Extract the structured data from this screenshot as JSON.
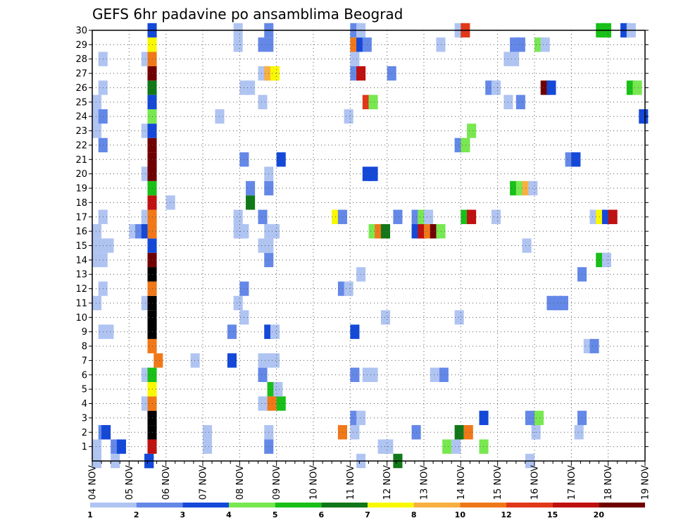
{
  "chart_data": {
    "type": "heatmap",
    "title": "GEFS 6hr padavine po ansamblima Beograd",
    "xlabel": "",
    "ylabel": "",
    "x_tick_labels": [
      "04 NOV",
      "05 NOV",
      "06 NOV",
      "07 NOV",
      "08 NOV",
      "09 NOV",
      "10 NOV",
      "11 NOV",
      "12 NOV",
      "13 NOV",
      "14 NOV",
      "15 NOV",
      "16 NOV",
      "17 NOV",
      "18 NOV",
      "19 NOV"
    ],
    "y_tick_labels": [
      "1",
      "2",
      "3",
      "4",
      "5",
      "6",
      "7",
      "8",
      "9",
      "10",
      "11",
      "12",
      "13",
      "14",
      "15",
      "16",
      "17",
      "18",
      "19",
      "20",
      "21",
      "22",
      "23",
      "24",
      "25",
      "26",
      "27",
      "28",
      "29",
      "30"
    ],
    "xlim_hours_from_04nov": [
      0,
      360
    ],
    "ylim_member": [
      0,
      30
    ],
    "grid": true,
    "legend": {
      "placement": "bottom",
      "labels": [
        "1",
        "2",
        "3",
        "4",
        "5",
        "6",
        "7",
        "8",
        "10",
        "12",
        "15",
        "20"
      ],
      "colors": [
        "#b0c4f2",
        "#6488e8",
        "#1448d8",
        "#78e850",
        "#18c018",
        "#107818",
        "#f8f800",
        "#f8b040",
        "#f07818",
        "#e03818",
        "#c01010",
        "#700000"
      ]
    },
    "cells": [
      [
        0,
        0,
        1
      ],
      [
        6,
        0,
        1
      ],
      [
        17,
        0,
        3
      ],
      [
        17,
        0,
        3
      ],
      [
        86,
        0,
        1
      ],
      [
        98,
        0,
        6
      ],
      [
        141,
        0,
        1
      ],
      [
        0,
        1,
        1
      ],
      [
        6,
        1,
        2
      ],
      [
        8,
        1,
        3
      ],
      [
        18,
        1,
        11
      ],
      [
        36,
        1,
        1
      ],
      [
        56,
        1,
        2
      ],
      [
        114,
        1,
        4
      ],
      [
        93,
        1,
        1
      ],
      [
        95,
        1,
        1
      ],
      [
        117,
        1,
        1
      ],
      [
        126,
        1,
        4
      ],
      [
        2,
        2,
        2
      ],
      [
        3,
        2,
        3
      ],
      [
        18,
        2,
        13
      ],
      [
        36,
        2,
        1
      ],
      [
        56,
        2,
        1
      ],
      [
        80,
        2,
        9
      ],
      [
        84,
        2,
        1
      ],
      [
        104,
        2,
        2
      ],
      [
        118,
        2,
        6
      ],
      [
        121,
        2,
        9
      ],
      [
        143,
        2,
        1
      ],
      [
        157,
        2,
        1
      ],
      [
        18,
        3,
        13
      ],
      [
        84,
        3,
        2
      ],
      [
        86,
        3,
        1
      ],
      [
        126,
        3,
        3
      ],
      [
        141,
        3,
        2
      ],
      [
        144,
        3,
        4
      ],
      [
        158,
        3,
        2
      ],
      [
        16,
        4,
        1
      ],
      [
        18,
        4,
        9
      ],
      [
        54,
        4,
        1
      ],
      [
        57,
        4,
        9
      ],
      [
        60,
        4,
        5
      ],
      [
        18,
        5,
        7
      ],
      [
        57,
        5,
        5
      ],
      [
        59,
        5,
        1
      ],
      [
        16,
        6,
        1
      ],
      [
        18,
        6,
        5
      ],
      [
        54,
        6,
        2
      ],
      [
        84,
        6,
        2
      ],
      [
        88,
        6,
        1
      ],
      [
        90,
        6,
        1
      ],
      [
        110,
        6,
        1
      ],
      [
        113,
        6,
        2
      ],
      [
        20,
        7,
        9
      ],
      [
        32,
        7,
        1
      ],
      [
        44,
        7,
        3
      ],
      [
        54,
        7,
        1
      ],
      [
        56,
        7,
        1
      ],
      [
        58,
        7,
        1
      ],
      [
        18,
        8,
        9
      ],
      [
        160,
        8,
        1
      ],
      [
        162,
        8,
        2
      ],
      [
        2,
        9,
        1
      ],
      [
        4,
        9,
        1
      ],
      [
        18,
        9,
        13
      ],
      [
        44,
        9,
        2
      ],
      [
        56,
        9,
        3
      ],
      [
        58,
        9,
        1
      ],
      [
        84,
        9,
        3
      ],
      [
        18,
        10,
        13
      ],
      [
        48,
        10,
        1
      ],
      [
        94,
        10,
        1
      ],
      [
        118,
        10,
        1
      ],
      [
        0,
        11,
        1
      ],
      [
        16,
        11,
        1
      ],
      [
        18,
        11,
        13
      ],
      [
        46,
        11,
        1
      ],
      [
        148,
        11,
        2
      ],
      [
        150,
        11,
        2
      ],
      [
        152,
        11,
        2
      ],
      [
        2,
        12,
        1
      ],
      [
        18,
        12,
        9
      ],
      [
        48,
        12,
        2
      ],
      [
        80,
        12,
        2
      ],
      [
        82,
        12,
        1
      ],
      [
        18,
        13,
        13
      ],
      [
        86,
        13,
        1
      ],
      [
        158,
        13,
        2
      ],
      [
        0,
        14,
        1
      ],
      [
        2,
        14,
        1
      ],
      [
        18,
        14,
        12
      ],
      [
        56,
        14,
        2
      ],
      [
        164,
        14,
        5
      ],
      [
        166,
        14,
        1
      ],
      [
        0,
        15,
        1
      ],
      [
        2,
        15,
        1
      ],
      [
        4,
        15,
        1
      ],
      [
        18,
        15,
        3
      ],
      [
        54,
        15,
        1
      ],
      [
        56,
        15,
        1
      ],
      [
        140,
        15,
        1
      ],
      [
        0,
        16,
        1
      ],
      [
        12,
        16,
        1
      ],
      [
        14,
        16,
        2
      ],
      [
        16,
        16,
        3
      ],
      [
        18,
        16,
        9
      ],
      [
        46,
        16,
        1
      ],
      [
        48,
        16,
        1
      ],
      [
        56,
        16,
        1
      ],
      [
        58,
        16,
        1
      ],
      [
        90,
        16,
        4
      ],
      [
        92,
        16,
        9
      ],
      [
        94,
        16,
        6
      ],
      [
        104,
        16,
        3
      ],
      [
        106,
        16,
        11
      ],
      [
        108,
        16,
        9
      ],
      [
        110,
        16,
        12
      ],
      [
        112,
        16,
        4
      ],
      [
        2,
        17,
        1
      ],
      [
        16,
        17,
        1
      ],
      [
        18,
        17,
        9
      ],
      [
        46,
        17,
        1
      ],
      [
        54,
        17,
        2
      ],
      [
        78,
        17,
        7
      ],
      [
        80,
        17,
        2
      ],
      [
        98,
        17,
        2
      ],
      [
        104,
        17,
        2
      ],
      [
        106,
        17,
        4
      ],
      [
        108,
        17,
        1
      ],
      [
        120,
        17,
        5
      ],
      [
        122,
        17,
        11
      ],
      [
        130,
        17,
        1
      ],
      [
        162,
        17,
        1
      ],
      [
        164,
        17,
        7
      ],
      [
        166,
        17,
        3
      ],
      [
        168,
        17,
        11
      ],
      [
        18,
        18,
        11
      ],
      [
        24,
        18,
        1
      ],
      [
        50,
        18,
        6
      ],
      [
        50,
        19,
        2
      ],
      [
        56,
        19,
        2
      ],
      [
        18,
        19,
        5
      ],
      [
        136,
        19,
        5
      ],
      [
        138,
        19,
        4
      ],
      [
        140,
        19,
        8
      ],
      [
        142,
        19,
        1
      ],
      [
        16,
        20,
        1
      ],
      [
        18,
        20,
        12
      ],
      [
        56,
        20,
        1
      ],
      [
        88,
        20,
        3
      ],
      [
        90,
        20,
        3
      ],
      [
        18,
        21,
        12
      ],
      [
        48,
        21,
        2
      ],
      [
        60,
        21,
        3
      ],
      [
        154,
        21,
        2
      ],
      [
        156,
        21,
        3
      ],
      [
        2,
        22,
        2
      ],
      [
        18,
        22,
        12
      ],
      [
        118,
        22,
        2
      ],
      [
        120,
        22,
        4
      ],
      [
        0,
        23,
        1
      ],
      [
        16,
        23,
        1
      ],
      [
        18,
        23,
        3
      ],
      [
        122,
        23,
        4
      ],
      [
        0,
        24,
        1
      ],
      [
        2,
        24,
        2
      ],
      [
        18,
        24,
        4
      ],
      [
        40,
        24,
        1
      ],
      [
        82,
        24,
        1
      ],
      [
        178,
        24,
        3
      ],
      [
        0,
        25,
        1
      ],
      [
        18,
        25,
        3
      ],
      [
        54,
        25,
        1
      ],
      [
        88,
        25,
        10
      ],
      [
        90,
        25,
        4
      ],
      [
        134,
        25,
        1
      ],
      [
        138,
        25,
        2
      ],
      [
        2,
        26,
        1
      ],
      [
        18,
        26,
        6
      ],
      [
        48,
        26,
        1
      ],
      [
        50,
        26,
        1
      ],
      [
        128,
        26,
        2
      ],
      [
        130,
        26,
        1
      ],
      [
        146,
        26,
        12
      ],
      [
        148,
        26,
        3
      ],
      [
        174,
        26,
        5
      ],
      [
        176,
        26,
        4
      ],
      [
        18,
        27,
        12
      ],
      [
        54,
        27,
        1
      ],
      [
        56,
        27,
        8
      ],
      [
        58,
        27,
        7
      ],
      [
        84,
        27,
        2
      ],
      [
        86,
        27,
        11
      ],
      [
        96,
        27,
        2
      ],
      [
        2,
        28,
        1
      ],
      [
        16,
        28,
        1
      ],
      [
        18,
        28,
        9
      ],
      [
        84,
        28,
        1
      ],
      [
        134,
        28,
        1
      ],
      [
        136,
        28,
        1
      ],
      [
        18,
        29,
        7
      ],
      [
        46,
        29,
        1
      ],
      [
        54,
        29,
        2
      ],
      [
        56,
        29,
        2
      ],
      [
        84,
        29,
        9
      ],
      [
        86,
        29,
        3
      ],
      [
        88,
        29,
        2
      ],
      [
        112,
        29,
        1
      ],
      [
        136,
        29,
        2
      ],
      [
        138,
        29,
        2
      ],
      [
        144,
        29,
        4
      ],
      [
        146,
        29,
        1
      ],
      [
        18,
        30,
        3
      ],
      [
        46,
        30,
        1
      ],
      [
        56,
        30,
        2
      ],
      [
        84,
        30,
        2
      ],
      [
        86,
        30,
        1
      ],
      [
        118,
        30,
        1
      ],
      [
        120,
        30,
        10
      ],
      [
        164,
        30,
        5
      ],
      [
        166,
        30,
        5
      ],
      [
        172,
        30,
        3
      ],
      [
        174,
        30,
        1
      ]
    ]
  }
}
